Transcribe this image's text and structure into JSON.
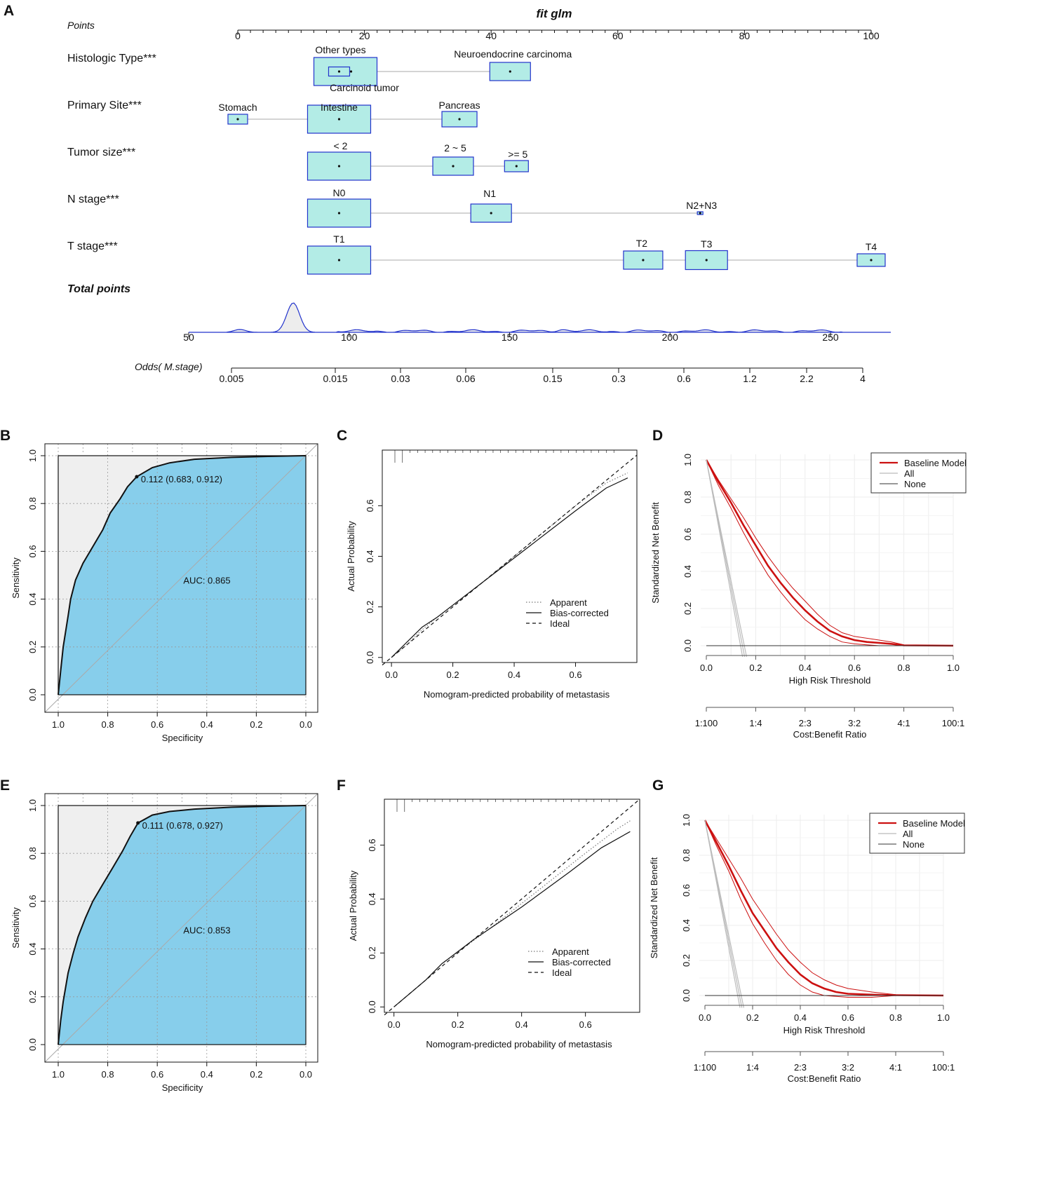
{
  "panel_labels": {
    "A": "A",
    "B": "B",
    "C": "C",
    "D": "D",
    "E": "E",
    "F": "F",
    "G": "G"
  },
  "colors": {
    "box_fill": "#b3ece6",
    "box_stroke": "#2233cc",
    "roc_fill": "#87ceeb",
    "roc_bg": "#efefef",
    "dca_red": "#cc1111",
    "density": "#2233cc"
  },
  "nomogram": {
    "title": "fit glm",
    "points_label": "Points",
    "points_ticks": [
      "0",
      "20",
      "40",
      "60",
      "80",
      "100"
    ],
    "variables": [
      {
        "name": "Histologic Type***",
        "levels": [
          {
            "label": "Other types",
            "points": 17
          },
          {
            "label": "Carcinoid tumor",
            "points": 16
          },
          {
            "label": "Neuroendocrine carcinoma",
            "points": 43
          }
        ]
      },
      {
        "name": "Primary Site***",
        "levels": [
          {
            "label": "Stomach",
            "points": 0
          },
          {
            "label": "Intestine",
            "points": 16
          },
          {
            "label": "Pancreas",
            "points": 35
          }
        ]
      },
      {
        "name": "Tumor size***",
        "levels": [
          {
            "label": "< 2",
            "points": 16
          },
          {
            "label": "2 ~ 5",
            "points": 34
          },
          {
            "label": ">= 5",
            "points": 44
          }
        ]
      },
      {
        "name": "N stage***",
        "levels": [
          {
            "label": "N0",
            "points": 16
          },
          {
            "label": "N1",
            "points": 40
          },
          {
            "label": "N2+N3",
            "points": 73
          }
        ]
      },
      {
        "name": "T stage***",
        "levels": [
          {
            "label": "T1",
            "points": 16
          },
          {
            "label": "T2",
            "points": 64
          },
          {
            "label": "T3",
            "points": 74
          },
          {
            "label": "T4",
            "points": 100
          }
        ]
      }
    ],
    "total_points_label": "Total points",
    "total_ticks": [
      "50",
      "100",
      "150",
      "200",
      "250"
    ],
    "odds_label": "Odds( M.stage)",
    "odds_ticks": [
      "0.005",
      "0.015",
      "0.03",
      "0.06",
      "0.15",
      "0.3",
      "0.6",
      "1.2",
      "2.2",
      "4"
    ]
  },
  "chart_data": [
    {
      "panel": "B",
      "type": "area",
      "xlabel": "Specificity",
      "ylabel": "Sensitivity",
      "auc_label": "AUC: 0.865",
      "best_label": "0.112 (0.683, 0.912)",
      "best_point": [
        0.683,
        0.912
      ],
      "x_ticks": [
        "1.0",
        "0.8",
        "0.6",
        "0.4",
        "0.2",
        "0.0"
      ],
      "y_ticks": [
        "0.0",
        "0.2",
        "0.4",
        "0.6",
        "0.8",
        "1.0"
      ],
      "curve": [
        [
          1,
          0
        ],
        [
          0.99,
          0.1
        ],
        [
          0.98,
          0.2
        ],
        [
          0.96,
          0.33
        ],
        [
          0.95,
          0.4
        ],
        [
          0.93,
          0.48
        ],
        [
          0.9,
          0.55
        ],
        [
          0.86,
          0.62
        ],
        [
          0.82,
          0.69
        ],
        [
          0.79,
          0.76
        ],
        [
          0.75,
          0.82
        ],
        [
          0.72,
          0.87
        ],
        [
          0.683,
          0.912
        ],
        [
          0.62,
          0.95
        ],
        [
          0.55,
          0.97
        ],
        [
          0.45,
          0.985
        ],
        [
          0.3,
          0.993
        ],
        [
          0.15,
          0.997
        ],
        [
          0,
          1
        ]
      ]
    },
    {
      "panel": "C",
      "type": "line",
      "xlabel": "Nomogram-predicted probability of metastasis",
      "ylabel": "Actual Probability",
      "x_ticks": [
        "0.0",
        "0.2",
        "0.4",
        "0.6"
      ],
      "y_ticks": [
        "0.0",
        "0.2",
        "0.4",
        "0.6"
      ],
      "xlim": [
        -0.03,
        0.8
      ],
      "ylim": [
        -0.02,
        0.82
      ],
      "legend": [
        "Apparent",
        "Bias-corrected",
        "Ideal"
      ],
      "series": [
        {
          "name": "Apparent",
          "points": [
            [
              0.0,
              0.0
            ],
            [
              0.05,
              0.05
            ],
            [
              0.1,
              0.11
            ],
            [
              0.15,
              0.16
            ],
            [
              0.3,
              0.3
            ],
            [
              0.45,
              0.45
            ],
            [
              0.6,
              0.6
            ],
            [
              0.7,
              0.69
            ],
            [
              0.77,
              0.73
            ]
          ]
        },
        {
          "name": "Bias-corrected",
          "points": [
            [
              0.0,
              0.0
            ],
            [
              0.05,
              0.06
            ],
            [
              0.1,
              0.12
            ],
            [
              0.15,
              0.16
            ],
            [
              0.3,
              0.3
            ],
            [
              0.45,
              0.44
            ],
            [
              0.6,
              0.58
            ],
            [
              0.7,
              0.67
            ],
            [
              0.77,
              0.71
            ]
          ]
        },
        {
          "name": "Ideal",
          "points": [
            [
              -0.03,
              -0.03
            ],
            [
              0.8,
              0.8
            ]
          ]
        }
      ]
    },
    {
      "panel": "D",
      "type": "line",
      "xlabel": "High Risk Threshold",
      "ylabel": "Standardized Net Benefit",
      "x2label": "Cost:Benefit Ratio",
      "x_ticks": [
        "0.0",
        "0.2",
        "0.4",
        "0.6",
        "0.8",
        "1.0"
      ],
      "y_ticks": [
        "0.0",
        "0.2",
        "0.4",
        "0.6",
        "0.8",
        "1.0"
      ],
      "x2_ticks": [
        "1:100",
        "1:4",
        "2:3",
        "3:2",
        "4:1",
        "100:1"
      ],
      "legend": [
        "Baseline Model",
        "All",
        "None"
      ],
      "series": [
        {
          "name": "Baseline Model",
          "points": [
            [
              0,
              1
            ],
            [
              0.05,
              0.88
            ],
            [
              0.1,
              0.77
            ],
            [
              0.15,
              0.65
            ],
            [
              0.2,
              0.54
            ],
            [
              0.25,
              0.43
            ],
            [
              0.3,
              0.34
            ],
            [
              0.35,
              0.26
            ],
            [
              0.4,
              0.19
            ],
            [
              0.45,
              0.13
            ],
            [
              0.5,
              0.08
            ],
            [
              0.55,
              0.05
            ],
            [
              0.6,
              0.03
            ],
            [
              0.65,
              0.02
            ],
            [
              0.7,
              0.015
            ],
            [
              0.75,
              0.01
            ],
            [
              0.8,
              0.002
            ],
            [
              1,
              0
            ]
          ]
        },
        {
          "name": "Baseline Model upper",
          "points": [
            [
              0,
              1
            ],
            [
              0.05,
              0.89
            ],
            [
              0.1,
              0.79
            ],
            [
              0.15,
              0.69
            ],
            [
              0.2,
              0.58
            ],
            [
              0.25,
              0.48
            ],
            [
              0.3,
              0.39
            ],
            [
              0.35,
              0.31
            ],
            [
              0.4,
              0.24
            ],
            [
              0.45,
              0.17
            ],
            [
              0.5,
              0.11
            ],
            [
              0.55,
              0.07
            ],
            [
              0.6,
              0.05
            ],
            [
              0.65,
              0.04
            ],
            [
              0.7,
              0.03
            ],
            [
              0.75,
              0.02
            ],
            [
              0.8,
              0.005
            ]
          ]
        },
        {
          "name": "Baseline Model lower",
          "points": [
            [
              0,
              1
            ],
            [
              0.05,
              0.86
            ],
            [
              0.1,
              0.74
            ],
            [
              0.15,
              0.61
            ],
            [
              0.2,
              0.49
            ],
            [
              0.25,
              0.38
            ],
            [
              0.3,
              0.29
            ],
            [
              0.35,
              0.21
            ],
            [
              0.4,
              0.14
            ],
            [
              0.45,
              0.09
            ],
            [
              0.5,
              0.05
            ],
            [
              0.55,
              0.02
            ],
            [
              0.6,
              0.01
            ],
            [
              0.65,
              0.005
            ],
            [
              0.7,
              0.0
            ],
            [
              0.75,
              0.0
            ],
            [
              0.8,
              0.0
            ]
          ]
        },
        {
          "name": "All",
          "points": [
            [
              0,
              1
            ],
            [
              0.155,
              -0.06
            ]
          ]
        },
        {
          "name": "None",
          "points": [
            [
              0,
              0
            ],
            [
              1,
              0
            ]
          ]
        }
      ]
    },
    {
      "panel": "E",
      "type": "area",
      "xlabel": "Specificity",
      "ylabel": "Sensitivity",
      "auc_label": "AUC: 0.853",
      "best_label": "0.111 (0.678, 0.927)",
      "best_point": [
        0.678,
        0.927
      ],
      "x_ticks": [
        "1.0",
        "0.8",
        "0.6",
        "0.4",
        "0.2",
        "0.0"
      ],
      "y_ticks": [
        "0.0",
        "0.2",
        "0.4",
        "0.6",
        "0.8",
        "1.0"
      ],
      "curve": [
        [
          1,
          0
        ],
        [
          0.99,
          0.1
        ],
        [
          0.98,
          0.18
        ],
        [
          0.96,
          0.3
        ],
        [
          0.94,
          0.38
        ],
        [
          0.92,
          0.45
        ],
        [
          0.89,
          0.53
        ],
        [
          0.86,
          0.6
        ],
        [
          0.82,
          0.67
        ],
        [
          0.78,
          0.74
        ],
        [
          0.74,
          0.81
        ],
        [
          0.71,
          0.87
        ],
        [
          0.678,
          0.927
        ],
        [
          0.62,
          0.96
        ],
        [
          0.55,
          0.975
        ],
        [
          0.45,
          0.985
        ],
        [
          0.3,
          0.993
        ],
        [
          0.15,
          0.997
        ],
        [
          0,
          1
        ]
      ]
    },
    {
      "panel": "F",
      "type": "line",
      "xlabel": "Nomogram-predicted probability of metastasis",
      "ylabel": "Actual Probability",
      "x_ticks": [
        "0.0",
        "0.2",
        "0.4",
        "0.6"
      ],
      "y_ticks": [
        "0.0",
        "0.2",
        "0.4",
        "0.6"
      ],
      "xlim": [
        -0.03,
        0.77
      ],
      "ylim": [
        -0.02,
        0.77
      ],
      "legend": [
        "Apparent",
        "Bias-corrected",
        "Ideal"
      ],
      "series": [
        {
          "name": "Apparent",
          "points": [
            [
              0.0,
              0.0
            ],
            [
              0.05,
              0.05
            ],
            [
              0.1,
              0.1
            ],
            [
              0.15,
              0.16
            ],
            [
              0.3,
              0.29
            ],
            [
              0.45,
              0.43
            ],
            [
              0.6,
              0.57
            ],
            [
              0.7,
              0.66
            ],
            [
              0.74,
              0.69
            ]
          ]
        },
        {
          "name": "Bias-corrected",
          "points": [
            [
              0.0,
              0.0
            ],
            [
              0.05,
              0.05
            ],
            [
              0.1,
              0.1
            ],
            [
              0.15,
              0.16
            ],
            [
              0.25,
              0.25
            ],
            [
              0.4,
              0.37
            ],
            [
              0.55,
              0.5
            ],
            [
              0.65,
              0.59
            ],
            [
              0.74,
              0.65
            ]
          ]
        },
        {
          "name": "Ideal",
          "points": [
            [
              -0.03,
              -0.03
            ],
            [
              0.77,
              0.77
            ]
          ]
        }
      ]
    },
    {
      "panel": "G",
      "type": "line",
      "xlabel": "High Risk Threshold",
      "ylabel": "Standardized Net Benefit",
      "x2label": "Cost:Benefit Ratio",
      "x_ticks": [
        "0.0",
        "0.2",
        "0.4",
        "0.6",
        "0.8",
        "1.0"
      ],
      "y_ticks": [
        "0.0",
        "0.2",
        "0.4",
        "0.6",
        "0.8",
        "1.0"
      ],
      "x2_ticks": [
        "1:100",
        "1:4",
        "2:3",
        "3:2",
        "4:1",
        "100:1"
      ],
      "legend": [
        "Baseline Model",
        "All",
        "None"
      ],
      "series": [
        {
          "name": "Baseline Model",
          "points": [
            [
              0,
              1
            ],
            [
              0.05,
              0.87
            ],
            [
              0.1,
              0.74
            ],
            [
              0.15,
              0.6
            ],
            [
              0.2,
              0.47
            ],
            [
              0.25,
              0.37
            ],
            [
              0.3,
              0.27
            ],
            [
              0.35,
              0.19
            ],
            [
              0.4,
              0.12
            ],
            [
              0.45,
              0.07
            ],
            [
              0.5,
              0.04
            ],
            [
              0.55,
              0.02
            ],
            [
              0.6,
              0.01
            ],
            [
              0.7,
              0.005
            ],
            [
              0.8,
              0.002
            ],
            [
              1,
              0
            ]
          ]
        },
        {
          "name": "Baseline Model upper",
          "points": [
            [
              0,
              1
            ],
            [
              0.05,
              0.89
            ],
            [
              0.1,
              0.78
            ],
            [
              0.15,
              0.67
            ],
            [
              0.2,
              0.55
            ],
            [
              0.25,
              0.45
            ],
            [
              0.3,
              0.35
            ],
            [
              0.35,
              0.26
            ],
            [
              0.4,
              0.19
            ],
            [
              0.45,
              0.13
            ],
            [
              0.5,
              0.09
            ],
            [
              0.55,
              0.06
            ],
            [
              0.6,
              0.04
            ],
            [
              0.7,
              0.02
            ],
            [
              0.8,
              0.005
            ]
          ]
        },
        {
          "name": "Baseline Model lower",
          "points": [
            [
              0,
              1
            ],
            [
              0.05,
              0.85
            ],
            [
              0.1,
              0.71
            ],
            [
              0.15,
              0.55
            ],
            [
              0.2,
              0.41
            ],
            [
              0.25,
              0.3
            ],
            [
              0.3,
              0.2
            ],
            [
              0.35,
              0.12
            ],
            [
              0.4,
              0.06
            ],
            [
              0.45,
              0.02
            ],
            [
              0.5,
              0.0
            ],
            [
              0.6,
              -0.01
            ],
            [
              0.7,
              -0.01
            ],
            [
              0.8,
              0.0
            ]
          ]
        },
        {
          "name": "All",
          "points": [
            [
              0,
              1
            ],
            [
              0.155,
              -0.07
            ]
          ]
        },
        {
          "name": "None",
          "points": [
            [
              0,
              0
            ],
            [
              1,
              0
            ]
          ]
        }
      ]
    }
  ]
}
